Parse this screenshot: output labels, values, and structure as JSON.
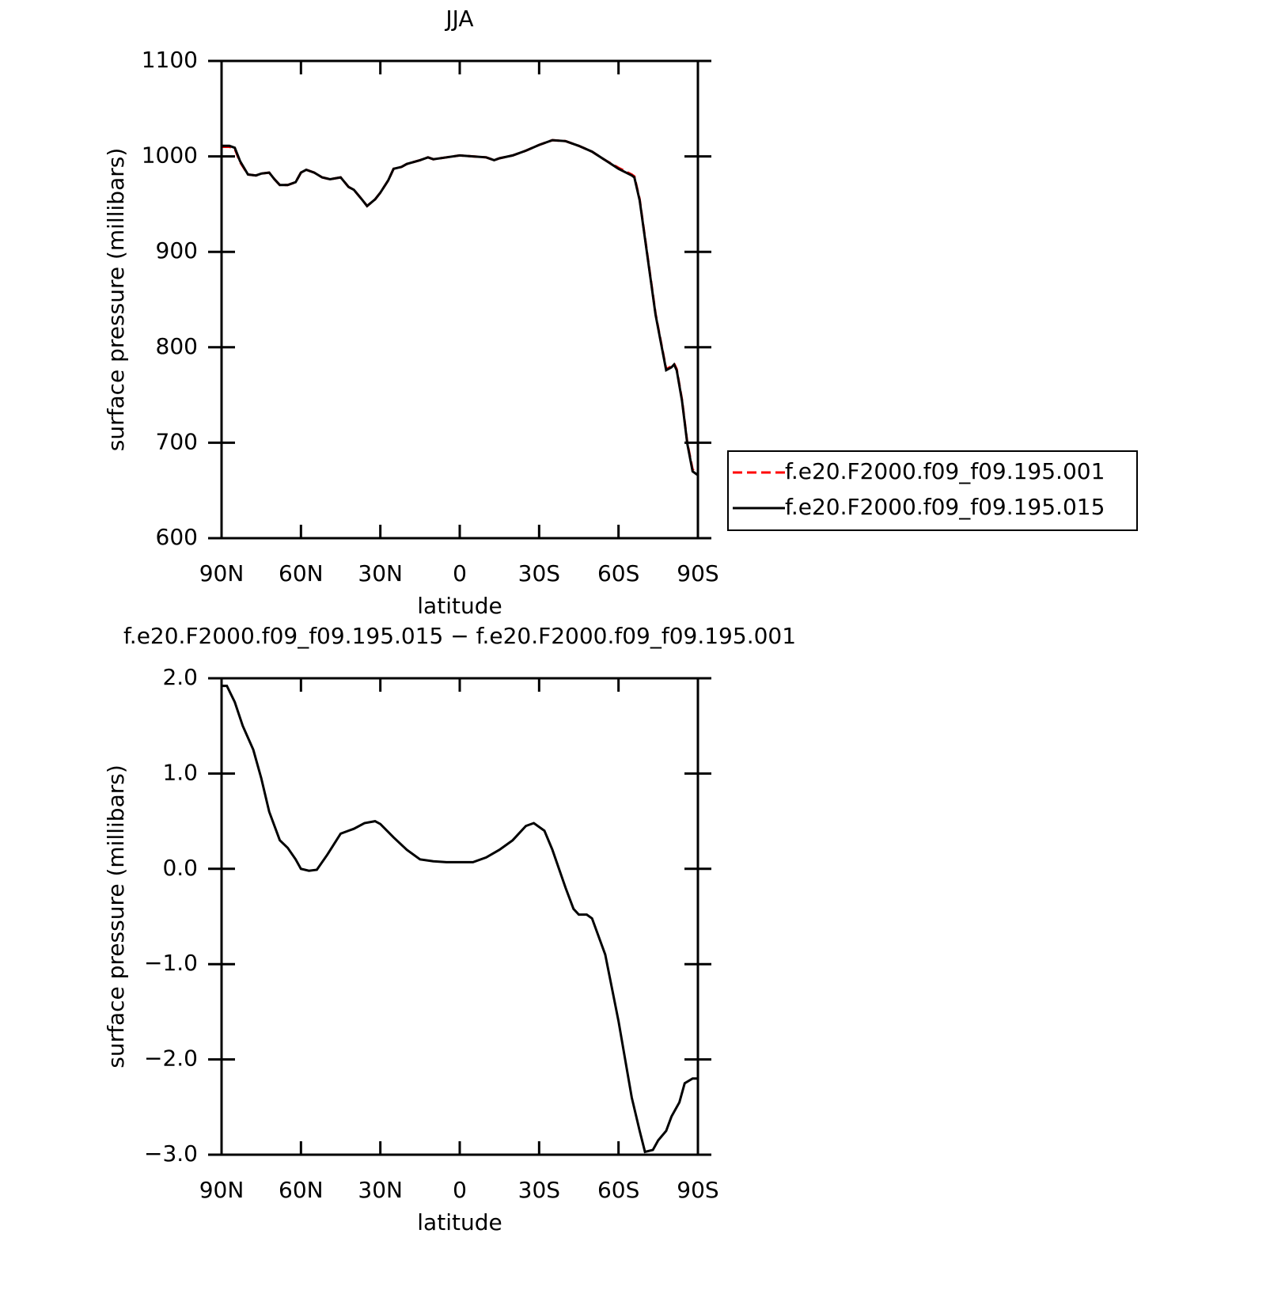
{
  "chart_data": [
    {
      "type": "line",
      "title": "JJA",
      "xlabel": "latitude",
      "ylabel": "surface pressure (millibars)",
      "x": [
        90,
        87,
        85,
        83,
        80,
        77,
        75,
        72,
        70,
        68,
        65,
        62,
        60,
        58,
        55,
        52,
        49,
        45,
        42,
        40,
        37,
        35,
        32,
        30,
        27,
        25,
        22,
        20,
        15,
        12,
        10,
        5,
        0,
        -5,
        -10,
        -13,
        -15,
        -20,
        -25,
        -30,
        -35,
        -40,
        -45,
        -50,
        -55,
        -60,
        -65,
        -66,
        -68,
        -70,
        -72,
        -74,
        -76,
        -78,
        -80,
        -81,
        -82,
        -84,
        -86,
        -88,
        -90
      ],
      "series": [
        {
          "name": "f.e20.F2000.f09_f09.195.001",
          "color": "#ff0000",
          "dashed": true,
          "values": [
            1010,
            1010,
            1008,
            994,
            981,
            980,
            982,
            983,
            976,
            970,
            970,
            973,
            983,
            986,
            983,
            978,
            976,
            978,
            968,
            965,
            955,
            948,
            955,
            962,
            975,
            987,
            989,
            992,
            996,
            999,
            997,
            999,
            1001,
            1000,
            999,
            996,
            998,
            1001,
            1006,
            1012,
            1017,
            1016,
            1011,
            1005,
            996,
            988,
            981,
            979,
            955,
            915,
            875,
            835,
            806,
            777,
            780,
            783,
            777,
            745,
            700,
            672,
            668
          ]
        },
        {
          "name": "f.e20.F2000.f09_f09.195.015",
          "color": "#000000",
          "dashed": false,
          "values": [
            1011,
            1011,
            1009,
            995,
            981,
            980,
            982,
            983,
            976,
            970,
            970,
            973,
            983,
            986,
            983,
            978,
            976,
            978,
            968,
            965,
            955,
            948,
            955,
            962,
            975,
            987,
            989,
            992,
            996,
            999,
            997,
            999,
            1001,
            1000,
            999,
            996,
            998,
            1001,
            1006,
            1012,
            1017,
            1016,
            1011,
            1005,
            996,
            987,
            980,
            978,
            954,
            914,
            874,
            834,
            805,
            776,
            779,
            782,
            776,
            744,
            699,
            670,
            666
          ]
        }
      ],
      "xlim": [
        90,
        -90
      ],
      "xticks": [
        {
          "value": 90,
          "label": "90N"
        },
        {
          "value": 60,
          "label": "60N"
        },
        {
          "value": 30,
          "label": "30N"
        },
        0,
        {
          "value": -30,
          "label": "30S"
        },
        {
          "value": -60,
          "label": "60S"
        },
        {
          "value": -90,
          "label": "90S"
        }
      ],
      "ylim": [
        600,
        1100
      ],
      "yticks": [
        600,
        700,
        800,
        900,
        1000,
        1100
      ],
      "legend": "right"
    },
    {
      "type": "line",
      "title": "f.e20.F2000.f09_f09.195.015 − f.e20.F2000.f09_f09.195.001",
      "xlabel": "latitude",
      "ylabel": "surface pressure (millibars)",
      "x": [
        90,
        88,
        85,
        82,
        78,
        75,
        72,
        68,
        65,
        62,
        60,
        57,
        54,
        50,
        45,
        42,
        40,
        36,
        32,
        30,
        25,
        20,
        15,
        10,
        5,
        0,
        -5,
        -10,
        -15,
        -20,
        -25,
        -28,
        -32,
        -35,
        -40,
        -43,
        -45,
        -48,
        -50,
        -55,
        -60,
        -65,
        -68,
        -70,
        -73,
        -75,
        -78,
        -80,
        -83,
        -85,
        -88,
        -90
      ],
      "series": [
        {
          "color": "#000000",
          "dashed": false,
          "values": [
            1.92,
            1.92,
            1.75,
            1.5,
            1.25,
            0.95,
            0.6,
            0.3,
            0.22,
            0.1,
            0.0,
            -0.02,
            -0.01,
            0.15,
            0.37,
            0.4,
            0.42,
            0.48,
            0.5,
            0.47,
            0.33,
            0.2,
            0.1,
            0.08,
            0.07,
            0.07,
            0.07,
            0.12,
            0.2,
            0.3,
            0.45,
            0.48,
            0.4,
            0.2,
            -0.2,
            -0.42,
            -0.48,
            -0.48,
            -0.52,
            -0.9,
            -1.6,
            -2.4,
            -2.75,
            -2.97,
            -2.95,
            -2.85,
            -2.75,
            -2.6,
            -2.45,
            -2.25,
            -2.2,
            -2.2
          ]
        }
      ],
      "xlim": [
        90,
        -90
      ],
      "xticks": [
        {
          "value": 90,
          "label": "90N"
        },
        {
          "value": 60,
          "label": "60N"
        },
        {
          "value": 30,
          "label": "30N"
        },
        0,
        {
          "value": -30,
          "label": "30S"
        },
        {
          "value": -60,
          "label": "60S"
        },
        {
          "value": -90,
          "label": "90S"
        }
      ],
      "ylim": [
        -3,
        2
      ],
      "yticks": [
        {
          "value": -3,
          "label": "−3.0"
        },
        {
          "value": -2,
          "label": "−2.0"
        },
        {
          "value": -1,
          "label": "−1.0"
        },
        {
          "value": 0,
          "label": "0.0"
        },
        {
          "value": 1,
          "label": "1.0"
        },
        {
          "value": 2,
          "label": "2.0"
        }
      ]
    }
  ]
}
